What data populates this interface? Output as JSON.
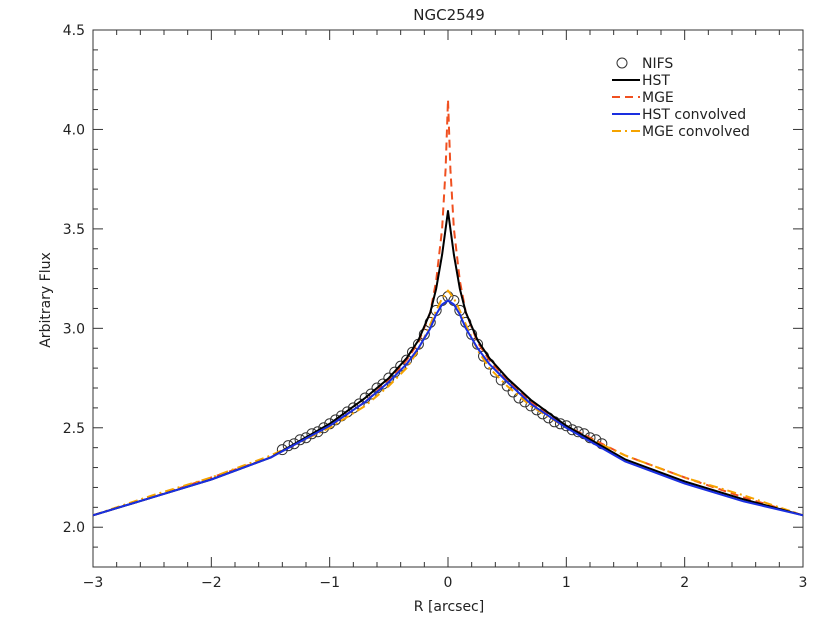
{
  "chart_data": {
    "type": "line",
    "title": "NGC2549",
    "xlabel": "R [arcsec]",
    "ylabel": "Arbitrary Flux",
    "xlim": [
      -3,
      3
    ],
    "ylim": [
      1.8,
      4.5
    ],
    "xticks": [
      -3,
      -2,
      -1,
      0,
      1,
      2,
      3
    ],
    "xtick_labels": [
      "−3",
      "−2",
      "−1",
      "0",
      "1",
      "2",
      "3"
    ],
    "yticks": [
      2.0,
      2.5,
      3.0,
      3.5,
      4.0,
      4.5
    ],
    "ytick_labels": [
      "2.0",
      "2.5",
      "3.0",
      "3.5",
      "4.0",
      "4.5"
    ],
    "grid": false,
    "legend_position": "top-right",
    "series": [
      {
        "name": "NIFS",
        "style": "circles",
        "color": "#333333",
        "x": [
          -1.4,
          -1.35,
          -1.3,
          -1.25,
          -1.2,
          -1.15,
          -1.1,
          -1.05,
          -1.0,
          -0.95,
          -0.9,
          -0.85,
          -0.8,
          -0.75,
          -0.7,
          -0.65,
          -0.6,
          -0.55,
          -0.5,
          -0.45,
          -0.4,
          -0.35,
          -0.3,
          -0.25,
          -0.2,
          -0.15,
          -0.1,
          -0.05,
          0.0,
          0.05,
          0.1,
          0.15,
          0.2,
          0.25,
          0.3,
          0.35,
          0.4,
          0.45,
          0.5,
          0.55,
          0.6,
          0.65,
          0.7,
          0.75,
          0.8,
          0.85,
          0.9,
          0.95,
          1.0,
          1.05,
          1.1,
          1.15,
          1.2,
          1.25,
          1.3
        ],
        "y": [
          2.39,
          2.41,
          2.42,
          2.44,
          2.45,
          2.47,
          2.48,
          2.5,
          2.52,
          2.54,
          2.56,
          2.58,
          2.6,
          2.62,
          2.65,
          2.67,
          2.7,
          2.72,
          2.75,
          2.78,
          2.81,
          2.84,
          2.88,
          2.92,
          2.97,
          3.03,
          3.09,
          3.14,
          3.16,
          3.14,
          3.09,
          3.03,
          2.97,
          2.92,
          2.86,
          2.82,
          2.78,
          2.74,
          2.71,
          2.68,
          2.65,
          2.63,
          2.61,
          2.59,
          2.57,
          2.55,
          2.53,
          2.52,
          2.51,
          2.49,
          2.48,
          2.47,
          2.45,
          2.44,
          2.42
        ]
      },
      {
        "name": "HST",
        "style": "solid",
        "color": "#000000",
        "x": [
          -3.0,
          -2.5,
          -2.0,
          -1.5,
          -1.0,
          -0.7,
          -0.5,
          -0.35,
          -0.25,
          -0.15,
          -0.1,
          -0.05,
          -0.02,
          0.0,
          0.02,
          0.05,
          0.1,
          0.15,
          0.25,
          0.35,
          0.5,
          0.7,
          1.0,
          1.5,
          2.0,
          2.5,
          3.0
        ],
        "y": [
          2.06,
          2.15,
          2.24,
          2.35,
          2.52,
          2.65,
          2.75,
          2.85,
          2.94,
          3.08,
          3.2,
          3.37,
          3.5,
          3.59,
          3.5,
          3.37,
          3.2,
          3.08,
          2.94,
          2.85,
          2.75,
          2.64,
          2.51,
          2.34,
          2.23,
          2.14,
          2.06
        ]
      },
      {
        "name": "MGE",
        "style": "dashed",
        "color": "#f05020",
        "x": [
          -3.0,
          -2.5,
          -2.0,
          -1.5,
          -1.0,
          -0.7,
          -0.5,
          -0.35,
          -0.25,
          -0.15,
          -0.1,
          -0.05,
          -0.02,
          0.0,
          0.02,
          0.05,
          0.1,
          0.15,
          0.25,
          0.35,
          0.5,
          0.7,
          1.0,
          1.5,
          2.0,
          2.5,
          3.0
        ],
        "y": [
          2.06,
          2.15,
          2.25,
          2.35,
          2.51,
          2.63,
          2.74,
          2.84,
          2.93,
          3.08,
          3.24,
          3.5,
          3.8,
          4.15,
          3.8,
          3.5,
          3.24,
          3.08,
          2.93,
          2.84,
          2.74,
          2.63,
          2.51,
          2.36,
          2.25,
          2.15,
          2.06
        ]
      },
      {
        "name": "HST convolved",
        "style": "solid",
        "color": "#1a2fe0",
        "x": [
          -3.0,
          -2.5,
          -2.0,
          -1.5,
          -1.0,
          -0.7,
          -0.5,
          -0.35,
          -0.25,
          -0.15,
          -0.1,
          -0.05,
          0.0,
          0.05,
          0.1,
          0.15,
          0.25,
          0.35,
          0.5,
          0.7,
          1.0,
          1.5,
          2.0,
          2.5,
          3.0
        ],
        "y": [
          2.06,
          2.15,
          2.24,
          2.35,
          2.51,
          2.63,
          2.73,
          2.82,
          2.9,
          3.0,
          3.07,
          3.12,
          3.14,
          3.12,
          3.07,
          3.0,
          2.9,
          2.82,
          2.73,
          2.62,
          2.5,
          2.33,
          2.22,
          2.13,
          2.06
        ]
      },
      {
        "name": "MGE convolved",
        "style": "dashdot",
        "color": "#f5a300",
        "x": [
          -3.0,
          -2.5,
          -2.0,
          -1.5,
          -1.0,
          -0.7,
          -0.5,
          -0.35,
          -0.25,
          -0.15,
          -0.1,
          -0.05,
          0.0,
          0.05,
          0.1,
          0.15,
          0.25,
          0.35,
          0.5,
          0.7,
          1.0,
          1.5,
          2.0,
          2.5,
          3.0
        ],
        "y": [
          2.06,
          2.16,
          2.25,
          2.36,
          2.5,
          2.61,
          2.71,
          2.8,
          2.89,
          3.02,
          3.09,
          3.15,
          3.19,
          3.15,
          3.09,
          3.02,
          2.89,
          2.8,
          2.71,
          2.61,
          2.5,
          2.36,
          2.25,
          2.16,
          2.06
        ]
      }
    ]
  }
}
